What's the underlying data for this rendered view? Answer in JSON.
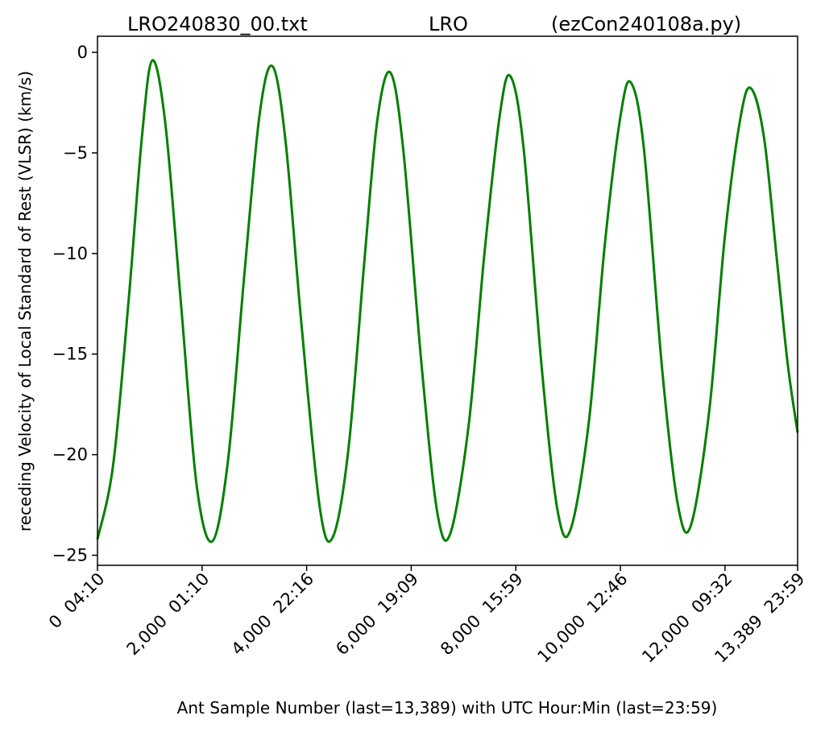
{
  "chart_data": {
    "type": "line",
    "title_parts": [
      "LRO240830_00.txt",
      "LRO",
      "(ezCon240108a.py)"
    ],
    "xlabel": "Ant Sample Number (last=13,389) with UTC Hour:Min (last=23:59)",
    "ylabel": "receding Velocity of Local Standard of Rest (VLSR) (km/s)",
    "xlim": [
      0,
      13389
    ],
    "ylim": [
      -25.5,
      0.8
    ],
    "grid": false,
    "x_ticks": [
      {
        "value": 0,
        "label": "0  04:10"
      },
      {
        "value": 2000,
        "label": "2,000  01:10"
      },
      {
        "value": 4000,
        "label": "4,000  22:16"
      },
      {
        "value": 6000,
        "label": "6,000  19:09"
      },
      {
        "value": 8000,
        "label": "8,000  15:59"
      },
      {
        "value": 10000,
        "label": "10,000  12:46"
      },
      {
        "value": 12000,
        "label": "12,000  09:32"
      },
      {
        "value": 13389,
        "label": "13,389  23:59"
      }
    ],
    "y_ticks": [
      {
        "value": 0,
        "label": "0"
      },
      {
        "value": -5,
        "label": "−5"
      },
      {
        "value": -10,
        "label": "−10"
      },
      {
        "value": -15,
        "label": "−15"
      },
      {
        "value": -20,
        "label": "−20"
      },
      {
        "value": -25,
        "label": "−25"
      }
    ],
    "series": [
      {
        "color": "#008000",
        "points": [
          [
            0,
            -24.2
          ],
          [
            300,
            -20.5
          ],
          [
            600,
            -12.2
          ],
          [
            850,
            -4.2
          ],
          [
            1050,
            -0.4
          ],
          [
            1300,
            -3.6
          ],
          [
            1600,
            -12.6
          ],
          [
            1900,
            -21.6
          ],
          [
            2200,
            -24.3
          ],
          [
            2500,
            -20.2
          ],
          [
            2800,
            -11.3
          ],
          [
            3100,
            -3.1
          ],
          [
            3350,
            -0.7
          ],
          [
            3600,
            -4.5
          ],
          [
            3900,
            -13.5
          ],
          [
            4250,
            -22.6
          ],
          [
            4500,
            -24.1
          ],
          [
            4800,
            -19.7
          ],
          [
            5100,
            -10.5
          ],
          [
            5350,
            -3.4
          ],
          [
            5600,
            -1.0
          ],
          [
            5850,
            -4.9
          ],
          [
            6200,
            -15.6
          ],
          [
            6500,
            -22.9
          ],
          [
            6750,
            -23.9
          ],
          [
            7100,
            -18.5
          ],
          [
            7400,
            -10.0
          ],
          [
            7700,
            -3.0
          ],
          [
            7900,
            -1.2
          ],
          [
            8150,
            -4.8
          ],
          [
            8500,
            -15.8
          ],
          [
            8800,
            -22.8
          ],
          [
            9050,
            -23.7
          ],
          [
            9400,
            -18.3
          ],
          [
            9700,
            -9.6
          ],
          [
            10000,
            -3.2
          ],
          [
            10200,
            -1.5
          ],
          [
            10450,
            -4.8
          ],
          [
            10800,
            -15.8
          ],
          [
            11100,
            -22.5
          ],
          [
            11350,
            -23.5
          ],
          [
            11700,
            -17.8
          ],
          [
            12000,
            -9.1
          ],
          [
            12300,
            -3.2
          ],
          [
            12500,
            -1.8
          ],
          [
            12750,
            -4.3
          ],
          [
            13000,
            -10.5
          ],
          [
            13200,
            -15.5
          ],
          [
            13389,
            -18.9
          ]
        ]
      }
    ]
  }
}
